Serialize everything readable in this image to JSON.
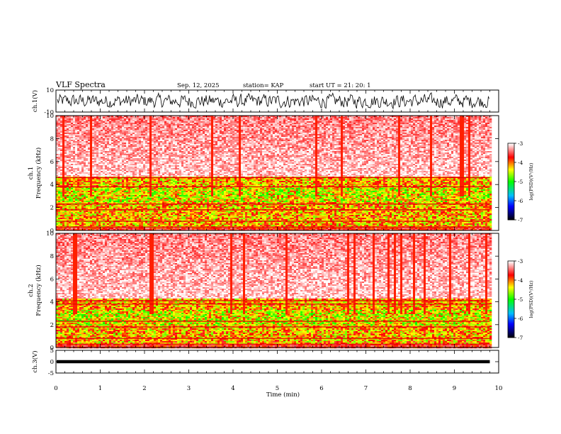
{
  "header": {
    "title": "VLF Spectra",
    "date": "Sep. 12, 2025",
    "station": "station= KAP",
    "start": "start  UT  =   21: 20: 1"
  },
  "chart_data": [
    {
      "type": "line",
      "name": "ch1-waveform",
      "ylabel": "ch.1(V)",
      "ylim": [
        -10,
        10
      ],
      "yticks": [
        "10",
        "-10"
      ],
      "xlim": [
        0,
        10
      ]
    },
    {
      "type": "heatmap",
      "name": "ch1-spectrogram",
      "ylabel": "ch.1 Frequency (kHz)",
      "ylim": [
        0,
        10
      ],
      "yticks": [
        "0",
        "2",
        "4",
        "6",
        "8",
        "10"
      ],
      "xlim": [
        0,
        10
      ],
      "data_end_min": 9.8,
      "colorbar": {
        "label": "log(PSD)(V²/Hz)",
        "range": [
          -7,
          -3
        ],
        "ticks": [
          "-3",
          "-4",
          "-5",
          "-6",
          "-7"
        ]
      }
    },
    {
      "type": "heatmap",
      "name": "ch2-spectrogram",
      "ylabel": "ch.2 Frequency (kHz)",
      "ylim": [
        0,
        10
      ],
      "yticks": [
        "0",
        "2",
        "4",
        "6",
        "8",
        "10"
      ],
      "xlim": [
        0,
        10
      ],
      "data_end_min": 9.8,
      "colorbar": {
        "label": "log(PSD)(V²/Hz)",
        "range": [
          -7,
          -3
        ],
        "ticks": [
          "-3",
          "-4",
          "-5",
          "-6",
          "-7"
        ]
      }
    },
    {
      "type": "line",
      "name": "ch3-waveform",
      "ylabel": "ch.3(V)",
      "ylim": [
        -5,
        5
      ],
      "yticks": [
        "5",
        "0",
        "-5"
      ],
      "xlim": [
        0,
        10
      ]
    }
  ],
  "xaxis": {
    "label": "Time  (min)",
    "ticks": [
      "0",
      "1",
      "2",
      "3",
      "4",
      "5",
      "6",
      "7",
      "8",
      "9",
      "10"
    ]
  }
}
